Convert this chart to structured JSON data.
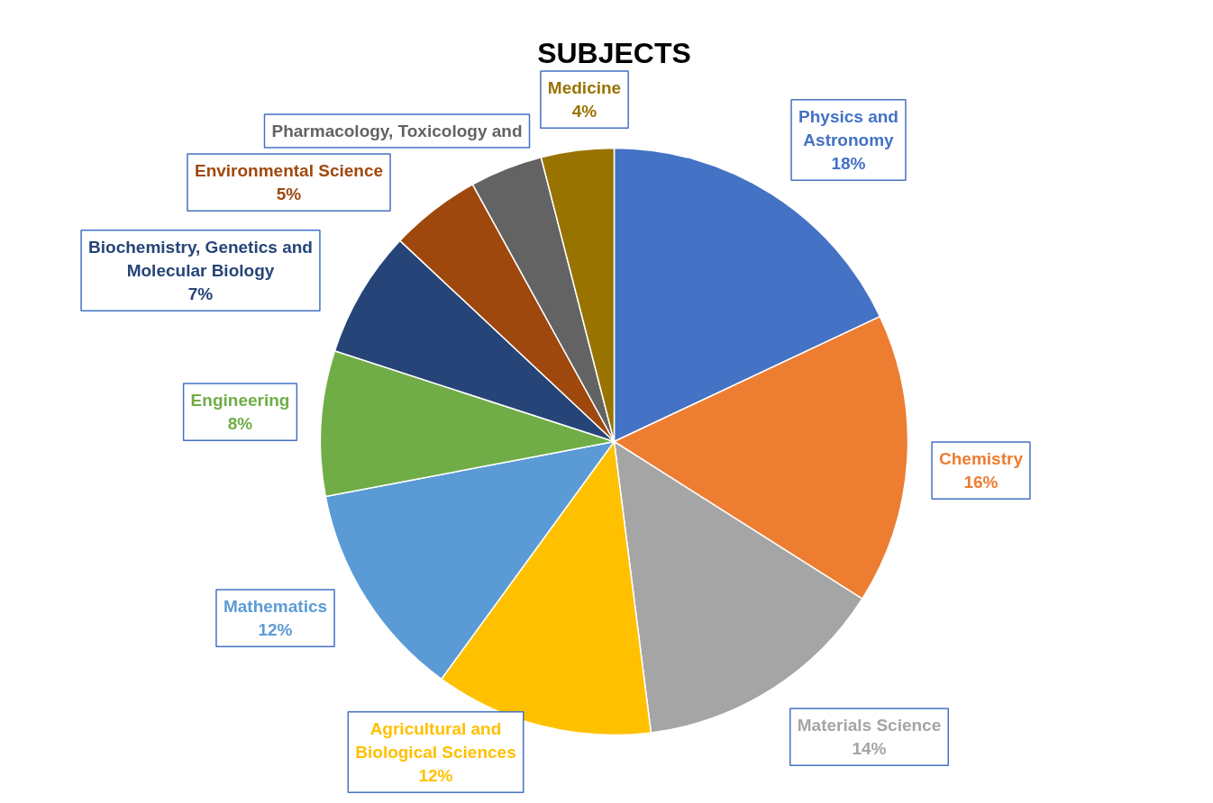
{
  "chart_data": {
    "type": "pie",
    "title": "SUBJECTS",
    "categories": [
      "Physics and Astronomy",
      "Chemistry",
      "Materials Science",
      "Agricultural and Biological Sciences",
      "Mathematics",
      "Engineering",
      "Biochemistry, Genetics and Molecular Biology",
      "Environmental Science",
      "Pharmacology, Toxicology and",
      "Medicine"
    ],
    "values": [
      18,
      16,
      14,
      12,
      12,
      8,
      7,
      5,
      4,
      4
    ],
    "value_labels": [
      "18%",
      "16%",
      "14%",
      "12%",
      "12%",
      "8%",
      "7%",
      "5%",
      null,
      "4%"
    ],
    "colors": [
      "#4472c4",
      "#ed7d31",
      "#a5a5a5",
      "#ffc000",
      "#5b9bd5",
      "#70ad47",
      "#264478",
      "#9e480e",
      "#636363",
      "#997300"
    ]
  }
}
